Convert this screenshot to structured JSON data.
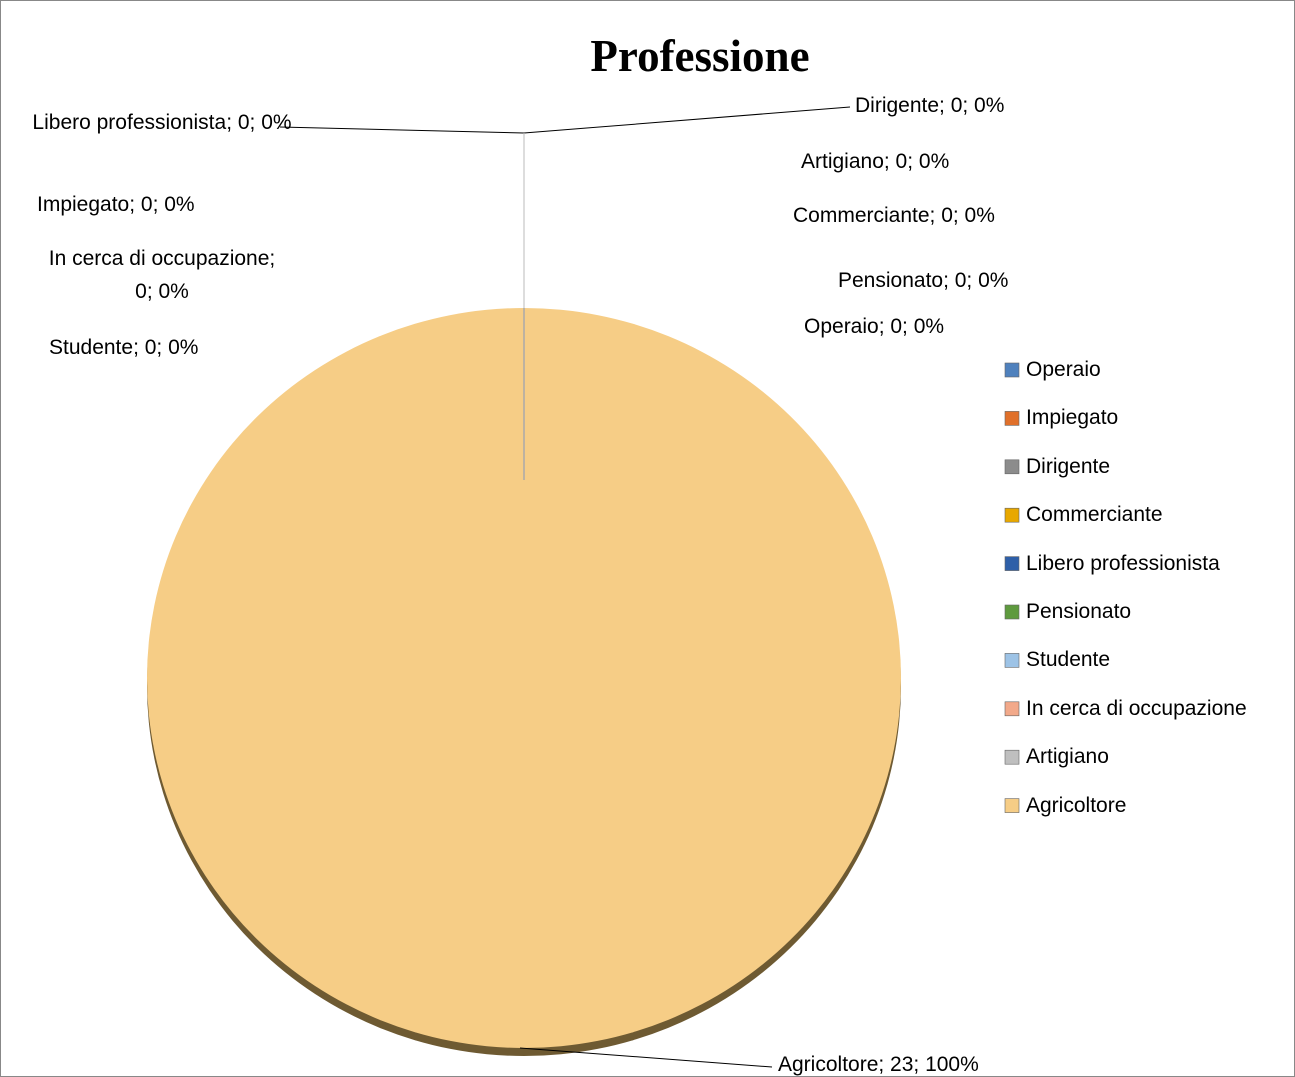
{
  "chart_data": {
    "type": "pie",
    "title": "Professione",
    "categories": [
      "Operaio",
      "Impiegato",
      "Dirigente",
      "Commerciante",
      "Libero professionista",
      "Pensionato",
      "Studente",
      "In cerca di occupazione",
      "Artigiano",
      "Agricoltore"
    ],
    "values": [
      0,
      0,
      0,
      0,
      0,
      0,
      0,
      0,
      0,
      23
    ],
    "value_labels": [
      "Operaio; 0; 0%",
      "Impiegato; 0; 0%",
      "Dirigente; 0; 0%",
      "Commerciante; 0; 0%",
      "Libero professionista; 0; 0%",
      "Pensionato; 0; 0%",
      "Studente; 0; 0%",
      "In cerca di occupazione; 0; 0%",
      "Artigiano; 0; 0%",
      "Agricoltore; 23; 100%"
    ],
    "colors": [
      "#4f81bd",
      "#e0702a",
      "#8c8c8c",
      "#e8a800",
      "#2e5fa8",
      "#5e9a3e",
      "#9dc3e6",
      "#f2a98a",
      "#bfbfbf",
      "#f6cd86"
    ],
    "legend": "right"
  }
}
